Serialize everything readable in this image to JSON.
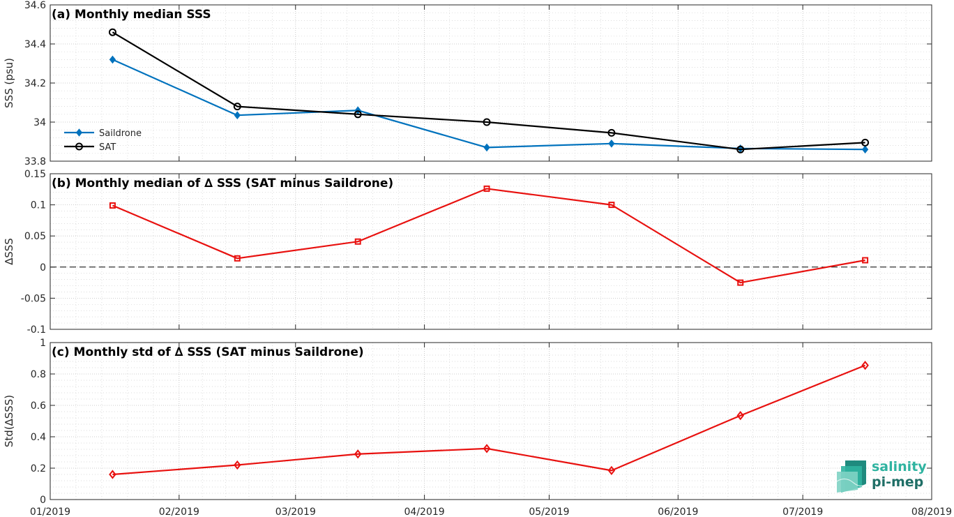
{
  "chart_data": [
    {
      "id": "a",
      "type": "line",
      "title": "(a) Monthly median SSS",
      "ylabel": "SSS (psu)",
      "ylim": [
        33.8,
        34.6
      ],
      "yticks": [
        33.8,
        34.0,
        34.2,
        34.4,
        34.6
      ],
      "ytick_labels": [
        "33.8",
        "34",
        "34.2",
        "34.4",
        "34.6"
      ],
      "x": [
        "2019-01-16",
        "2019-02-15",
        "2019-03-16",
        "2019-04-16",
        "2019-05-16",
        "2019-06-16",
        "2019-07-16"
      ],
      "series": [
        {
          "name": "Saildrone",
          "color": "#0072BD",
          "marker": "diamond-filled",
          "values": [
            34.32,
            34.035,
            34.06,
            33.87,
            33.89,
            33.865,
            33.86
          ]
        },
        {
          "name": "SAT",
          "color": "#000000",
          "marker": "circle-open",
          "values": [
            34.46,
            34.08,
            34.04,
            34.0,
            33.945,
            33.86,
            33.895
          ]
        }
      ],
      "legend": "lower-left",
      "grid": true
    },
    {
      "id": "b",
      "type": "line",
      "title": "(b) Monthly median of ∆ SSS (SAT minus Saildrone)",
      "ylabel": "∆SSS",
      "ylim": [
        -0.1,
        0.15
      ],
      "yticks": [
        -0.1,
        -0.05,
        0,
        0.05,
        0.1,
        0.15
      ],
      "ytick_labels": [
        "-0.1",
        "-0.05",
        "0",
        "0.05",
        "0.1",
        "0.15"
      ],
      "x": [
        "2019-01-16",
        "2019-02-15",
        "2019-03-16",
        "2019-04-16",
        "2019-05-16",
        "2019-06-16",
        "2019-07-16"
      ],
      "series": [
        {
          "color": "#E8110F",
          "marker": "square-open",
          "values": [
            0.099,
            0.014,
            0.041,
            0.126,
            0.1,
            -0.025,
            0.011
          ]
        }
      ],
      "zero_line": true,
      "grid": true
    },
    {
      "id": "c",
      "type": "line",
      "title": "(c) Monthly std of ∆ SSS (SAT minus Saildrone)",
      "ylabel": "Std(∆SSS)",
      "ylim": [
        0,
        1
      ],
      "yticks": [
        0,
        0.2,
        0.4,
        0.6,
        0.8,
        1
      ],
      "ytick_labels": [
        "0",
        "0.2",
        "0.4",
        "0.6",
        "0.8",
        "1"
      ],
      "x": [
        "2019-01-16",
        "2019-02-15",
        "2019-03-16",
        "2019-04-16",
        "2019-05-16",
        "2019-06-16",
        "2019-07-16"
      ],
      "series": [
        {
          "color": "#E8110F",
          "marker": "diamond-open",
          "values": [
            0.16,
            0.22,
            0.29,
            0.325,
            0.185,
            0.535,
            0.855
          ]
        }
      ],
      "grid": true
    }
  ],
  "x_axis": {
    "range": [
      "2019-01-01",
      "2019-08-01"
    ],
    "ticks": [
      "2019-01-01",
      "2019-02-01",
      "2019-03-01",
      "2019-04-01",
      "2019-05-01",
      "2019-06-01",
      "2019-07-01",
      "2019-08-01"
    ],
    "tick_labels": [
      "01/2019",
      "02/2019",
      "03/2019",
      "04/2019",
      "05/2019",
      "06/2019",
      "07/2019",
      "08/2019"
    ]
  },
  "logo": {
    "line1": "salinity",
    "line2": "pi-mep",
    "color1": "#2fb3a0",
    "color2": "#1f6e66"
  }
}
